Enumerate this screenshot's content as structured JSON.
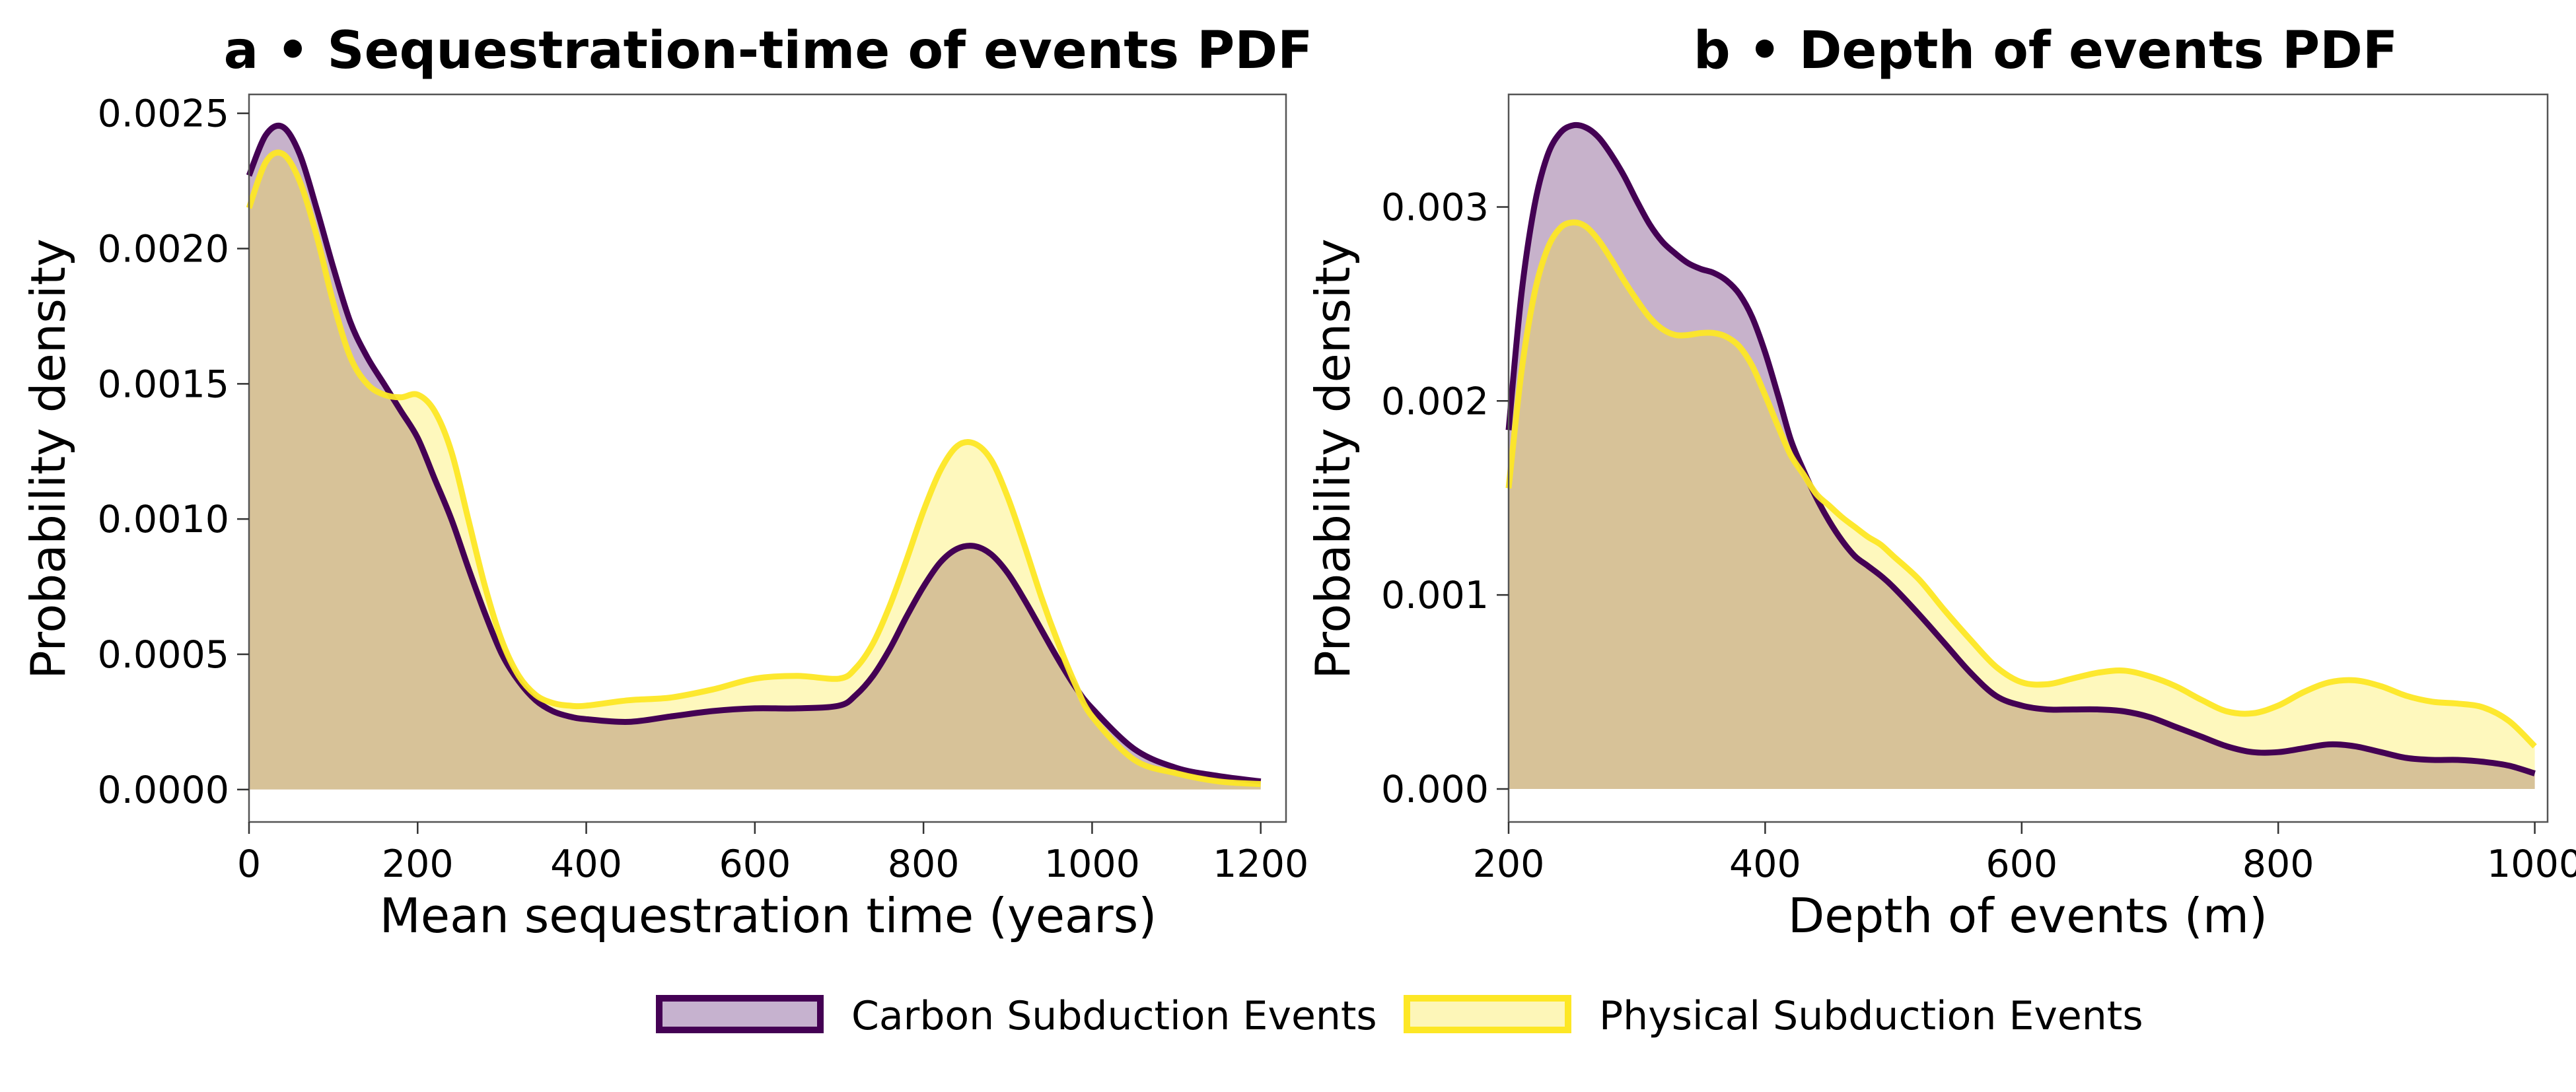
{
  "legend": {
    "items": [
      {
        "label": "Carbon Subduction Events",
        "fill": "#c6b2cf",
        "stroke": "#440154"
      },
      {
        "label": "Physical Subduction Events",
        "fill": "#fdf6b8",
        "stroke": "#fde725"
      }
    ]
  },
  "chart_data": [
    {
      "type": "area",
      "title": "a • Sequestration-time of events PDF",
      "xlabel": "Mean sequestration time (years)",
      "ylabel": "Probability density",
      "xlim": [
        0,
        1230
      ],
      "ylim": [
        -0.00012,
        0.00257
      ],
      "xticks": [
        0,
        200,
        400,
        600,
        800,
        1000,
        1200
      ],
      "xtick_labels": [
        "0",
        "200",
        "400",
        "600",
        "800",
        "1000",
        "1200"
      ],
      "yticks": [
        0,
        0.0005,
        0.001,
        0.0015,
        0.002,
        0.0025
      ],
      "ytick_labels": [
        "0.0000",
        "0.0005",
        "0.0010",
        "0.0015",
        "0.0020",
        "0.0025"
      ],
      "grid": false,
      "x": [
        0,
        20,
        40,
        60,
        80,
        100,
        120,
        140,
        160,
        180,
        200,
        220,
        240,
        260,
        280,
        300,
        320,
        340,
        360,
        380,
        400,
        450,
        500,
        550,
        600,
        650,
        700,
        720,
        740,
        760,
        780,
        800,
        820,
        840,
        860,
        880,
        900,
        920,
        940,
        960,
        980,
        1000,
        1050,
        1100,
        1150,
        1200
      ],
      "series": [
        {
          "name": "Carbon Subduction Events",
          "values": [
            0.00227,
            0.00242,
            0.00245,
            0.00235,
            0.00215,
            0.00193,
            0.00173,
            0.0016,
            0.0015,
            0.0014,
            0.0013,
            0.00115,
            0.001,
            0.00082,
            0.00065,
            0.0005,
            0.0004,
            0.00033,
            0.00029,
            0.00027,
            0.00026,
            0.00025,
            0.00027,
            0.00029,
            0.0003,
            0.0003,
            0.00031,
            0.00035,
            0.00042,
            0.00052,
            0.00064,
            0.00075,
            0.00084,
            0.00089,
            0.0009,
            0.00087,
            0.0008,
            0.0007,
            0.00059,
            0.00048,
            0.00038,
            0.0003,
            0.00015,
            8e-05,
            5e-05,
            3e-05
          ]
        },
        {
          "name": "Physical Subduction Events",
          "values": [
            0.00215,
            0.00232,
            0.00235,
            0.00225,
            0.00205,
            0.0018,
            0.0016,
            0.0015,
            0.00146,
            0.00145,
            0.00146,
            0.0014,
            0.00125,
            0.001,
            0.00075,
            0.00055,
            0.00042,
            0.00035,
            0.00032,
            0.00031,
            0.00031,
            0.00033,
            0.00034,
            0.00037,
            0.00041,
            0.00042,
            0.00041,
            0.00045,
            0.00054,
            0.00068,
            0.00085,
            0.00103,
            0.00118,
            0.00127,
            0.00128,
            0.00122,
            0.00108,
            0.0009,
            0.00071,
            0.00054,
            0.00039,
            0.00027,
            0.00011,
            6e-05,
            3e-05,
            2e-05
          ]
        }
      ]
    },
    {
      "type": "area",
      "title": "b • Depth of events PDF",
      "xlabel": "Depth of events (m)",
      "ylabel": "Probability density",
      "xlim": [
        200,
        1010
      ],
      "ylim": [
        -0.00017,
        0.00358
      ],
      "xticks": [
        200,
        400,
        600,
        800,
        1000
      ],
      "xtick_labels": [
        "200",
        "400",
        "600",
        "800",
        "1000"
      ],
      "yticks": [
        0,
        0.001,
        0.002,
        0.003
      ],
      "ytick_labels": [
        "0.000",
        "0.001",
        "0.002",
        "0.003"
      ],
      "grid": false,
      "x": [
        200,
        210,
        220,
        230,
        240,
        250,
        260,
        270,
        280,
        290,
        300,
        310,
        320,
        330,
        340,
        350,
        360,
        370,
        380,
        390,
        400,
        410,
        420,
        430,
        440,
        450,
        460,
        470,
        480,
        490,
        500,
        520,
        540,
        560,
        580,
        600,
        620,
        640,
        660,
        680,
        700,
        720,
        740,
        760,
        780,
        800,
        820,
        840,
        860,
        880,
        900,
        920,
        940,
        960,
        980,
        1000
      ],
      "series": [
        {
          "name": "Carbon Subduction Events",
          "values": [
            0.00185,
            0.00255,
            0.003,
            0.00326,
            0.00338,
            0.00342,
            0.00341,
            0.00336,
            0.00327,
            0.00316,
            0.00303,
            0.00291,
            0.00282,
            0.00276,
            0.00271,
            0.00268,
            0.00266,
            0.00262,
            0.00255,
            0.00243,
            0.00225,
            0.00203,
            0.0018,
            0.00164,
            0.0015,
            0.00138,
            0.00128,
            0.0012,
            0.00115,
            0.0011,
            0.00104,
            0.0009,
            0.00075,
            0.0006,
            0.00048,
            0.00043,
            0.00041,
            0.00041,
            0.00041,
            0.0004,
            0.00037,
            0.00032,
            0.00027,
            0.00022,
            0.00019,
            0.00019,
            0.00021,
            0.00023,
            0.00022,
            0.00019,
            0.00016,
            0.00015,
            0.00015,
            0.00014,
            0.00012,
            8e-05
          ]
        },
        {
          "name": "Physical Subduction Events",
          "values": [
            0.00155,
            0.00215,
            0.00255,
            0.00278,
            0.00289,
            0.00292,
            0.0029,
            0.00283,
            0.00273,
            0.00262,
            0.00252,
            0.00243,
            0.00237,
            0.00234,
            0.00234,
            0.00235,
            0.00235,
            0.00233,
            0.00228,
            0.00218,
            0.00203,
            0.00187,
            0.00172,
            0.00162,
            0.00152,
            0.00146,
            0.0014,
            0.00135,
            0.0013,
            0.00126,
            0.0012,
            0.00108,
            0.00092,
            0.00077,
            0.00063,
            0.00055,
            0.00054,
            0.00057,
            0.0006,
            0.00061,
            0.00058,
            0.00053,
            0.00046,
            0.0004,
            0.00039,
            0.00043,
            0.0005,
            0.00055,
            0.00056,
            0.00053,
            0.00048,
            0.00045,
            0.00044,
            0.00042,
            0.00035,
            0.00022
          ]
        }
      ]
    }
  ]
}
